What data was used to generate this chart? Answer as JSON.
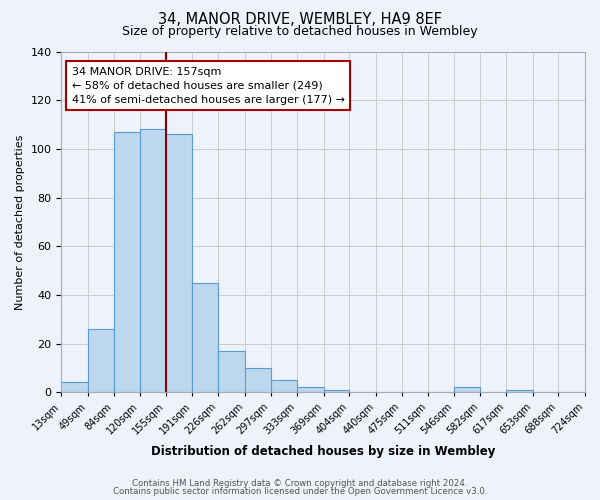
{
  "title": "34, MANOR DRIVE, WEMBLEY, HA9 8EF",
  "subtitle": "Size of property relative to detached houses in Wembley",
  "xlabel": "Distribution of detached houses by size in Wembley",
  "ylabel": "Number of detached properties",
  "bar_values": [
    4,
    26,
    107,
    108,
    106,
    45,
    17,
    10,
    5,
    2,
    1,
    0,
    0,
    0,
    0,
    2,
    0,
    1,
    0,
    0
  ],
  "bar_color": "#bdd7ee",
  "bar_edge_color": "#5b9bd5",
  "vline_x": 155,
  "vline_color": "#8b0000",
  "annotation_line1": "34 MANOR DRIVE: 157sqm",
  "annotation_line2": "← 58% of detached houses are smaller (249)",
  "annotation_line3": "41% of semi-detached houses are larger (177) →",
  "annotation_box_color": "#ffffff",
  "annotation_box_edge": "#aa0000",
  "ylim": [
    0,
    140
  ],
  "yticks": [
    0,
    20,
    40,
    60,
    80,
    100,
    120,
    140
  ],
  "grid_color": "#cccccc",
  "background_color": "#eef2fb",
  "footer_line1": "Contains HM Land Registry data © Crown copyright and database right 2024.",
  "footer_line2": "Contains public sector information licensed under the Open Government Licence v3.0.",
  "bin_edges": [
    13,
    49,
    84,
    120,
    155,
    191,
    226,
    262,
    297,
    333,
    369,
    404,
    440,
    475,
    511,
    546,
    582,
    617,
    653,
    688,
    724
  ],
  "xtick_labels": [
    "13sqm",
    "49sqm",
    "84sqm",
    "120sqm",
    "155sqm",
    "191sqm",
    "226sqm",
    "262sqm",
    "297sqm",
    "333sqm",
    "369sqm",
    "404sqm",
    "440sqm",
    "475sqm",
    "511sqm",
    "546sqm",
    "582sqm",
    "617sqm",
    "653sqm",
    "688sqm",
    "724sqm"
  ]
}
